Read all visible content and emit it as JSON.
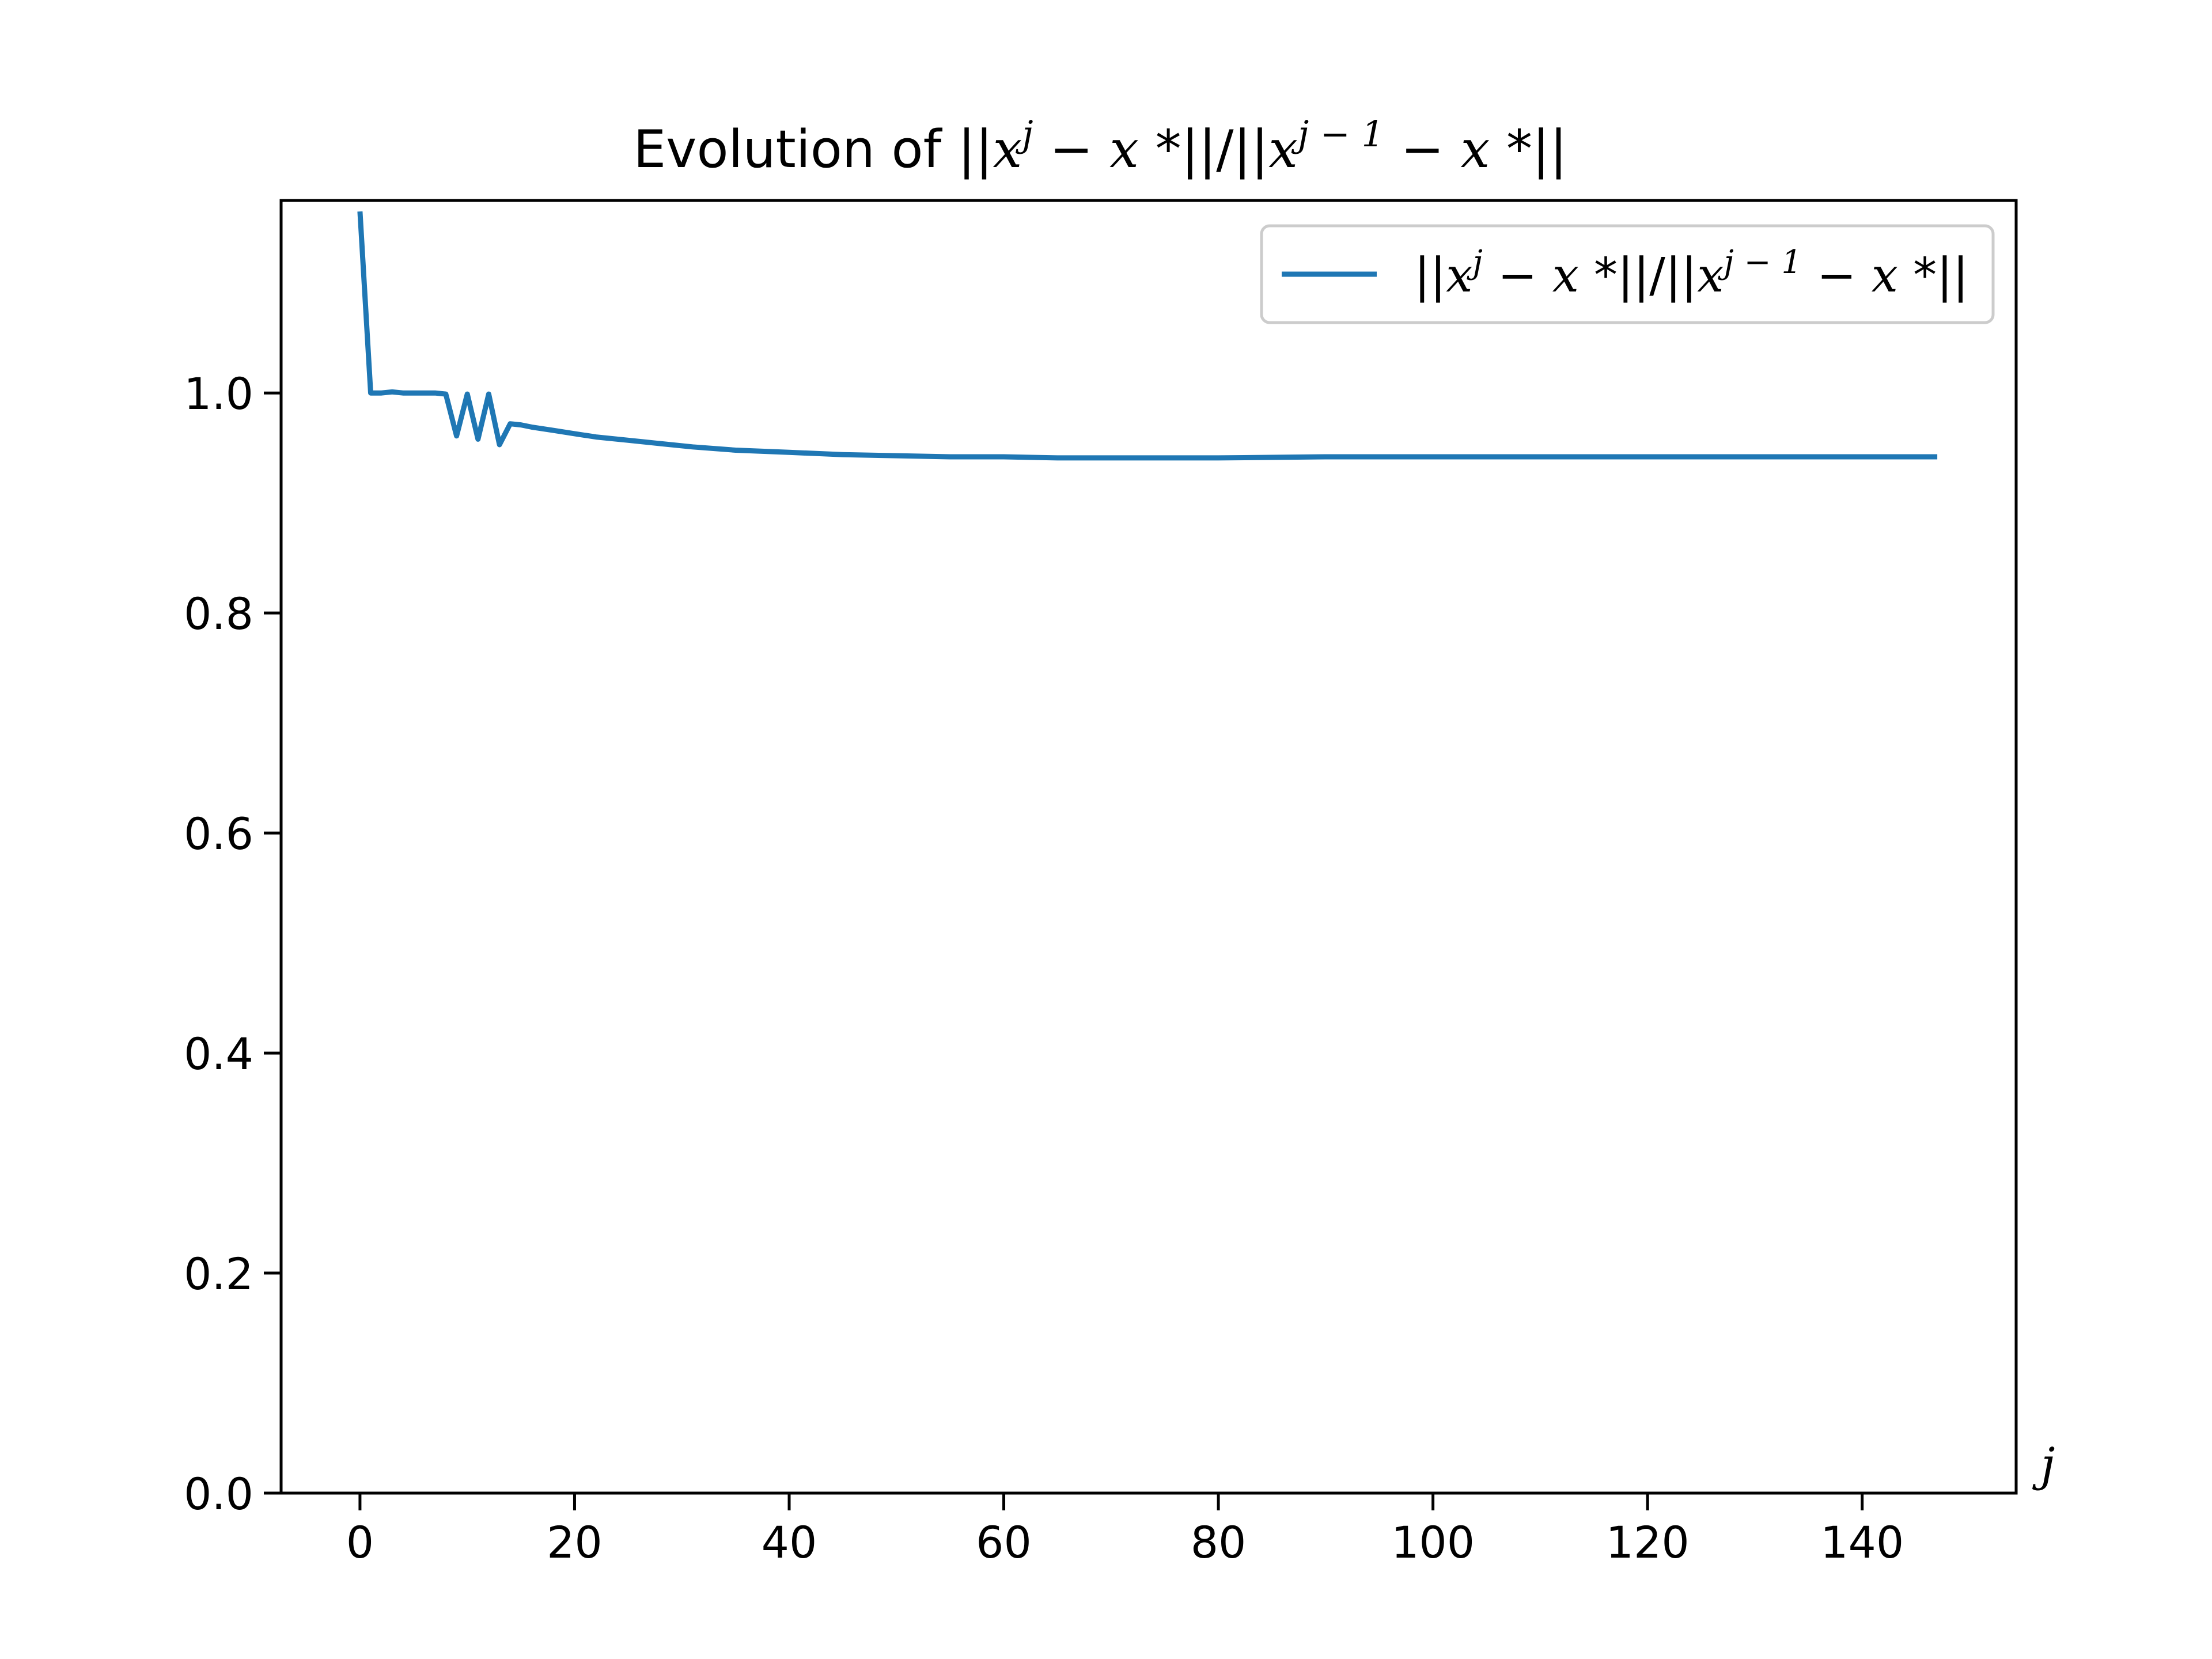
{
  "chart_data": {
    "type": "line",
    "title": "Evolution of ||x^j − x*||/||x^{j−1} − x*||",
    "xlabel": "j",
    "ylabel": "",
    "xlim": [
      -7.35,
      154.35
    ],
    "ylim": [
      0.0,
      1.175
    ],
    "x_ticks": [
      "0",
      "20",
      "40",
      "60",
      "80",
      "100",
      "120",
      "140"
    ],
    "y_ticks": [
      "0.0",
      "0.2",
      "0.4",
      "0.6",
      "0.8",
      "1.0"
    ],
    "grid": false,
    "legend": {
      "position": "top-right",
      "entries": [
        "||x^j − x*||/||x^{j−1} − x*||"
      ]
    },
    "series": [
      {
        "name": "||x^j − x*||/||x^{j−1} − x*||",
        "color": "#1f77b4",
        "x": [
          0,
          1,
          2,
          3,
          4,
          5,
          6,
          7,
          8,
          9,
          10,
          11,
          12,
          13,
          14,
          15,
          16,
          18,
          20,
          22,
          25,
          28,
          31,
          35,
          40,
          45,
          50,
          55,
          60,
          65,
          70,
          80,
          90,
          100,
          110,
          120,
          130,
          140,
          147
        ],
        "y": [
          1.165,
          1.0,
          1.0,
          1.001,
          1.0,
          1.0,
          1.0,
          1.0,
          0.999,
          0.961,
          0.999,
          0.958,
          0.999,
          0.953,
          0.972,
          0.971,
          0.969,
          0.966,
          0.963,
          0.96,
          0.957,
          0.954,
          0.951,
          0.948,
          0.946,
          0.944,
          0.943,
          0.942,
          0.942,
          0.941,
          0.941,
          0.941,
          0.942,
          0.942,
          0.942,
          0.942,
          0.942,
          0.942,
          0.942
        ]
      }
    ]
  }
}
